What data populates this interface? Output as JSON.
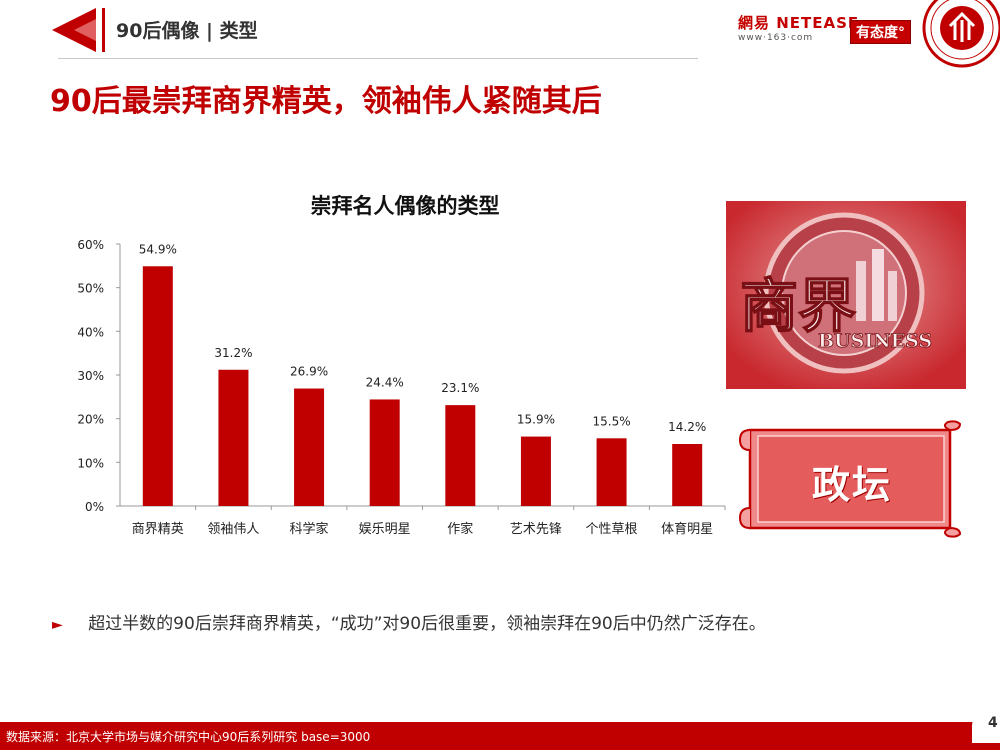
{
  "header": {
    "section_title": "90后偶像 | 类型",
    "netease_top": "網易 NETEASE",
    "netease_bottom": "www·163·com",
    "partner_badge": "有态度°"
  },
  "main_title": "90后最崇拜商界精英，领袖伟人紧随其后",
  "side_panel": {
    "business_cn": "商界",
    "business_en": "BUSINESS",
    "scroll_label": "政坛"
  },
  "bullet": {
    "text": "超过半数的90后崇拜商界精英，“成功”对90后很重要，领袖崇拜在90后中仍然广泛存在。"
  },
  "footer": {
    "source": "数据来源：北京大学市场与媒介研究中心90后系列研究 base=3000",
    "page_number": "4"
  },
  "colors": {
    "brand_red": "#c00000",
    "bar_red": "#c00000"
  },
  "chart_data": {
    "type": "bar",
    "title": "崇拜名人偶像的类型",
    "xlabel": "",
    "ylabel": "",
    "categories": [
      "商界精英",
      "领袖伟人",
      "科学家",
      "娱乐明星",
      "作家",
      "艺术先锋",
      "个性草根",
      "体育明星"
    ],
    "values": [
      54.9,
      31.2,
      26.9,
      24.4,
      23.1,
      15.9,
      15.5,
      14.2
    ],
    "value_labels": [
      "54.9%",
      "31.2%",
      "26.9%",
      "24.4%",
      "23.1%",
      "15.9%",
      "15.5%",
      "14.2%"
    ],
    "ylim": [
      0,
      60
    ],
    "yticks": [
      "0%",
      "10%",
      "20%",
      "30%",
      "40%",
      "50%",
      "60%"
    ],
    "grid": false,
    "legend": "none"
  }
}
